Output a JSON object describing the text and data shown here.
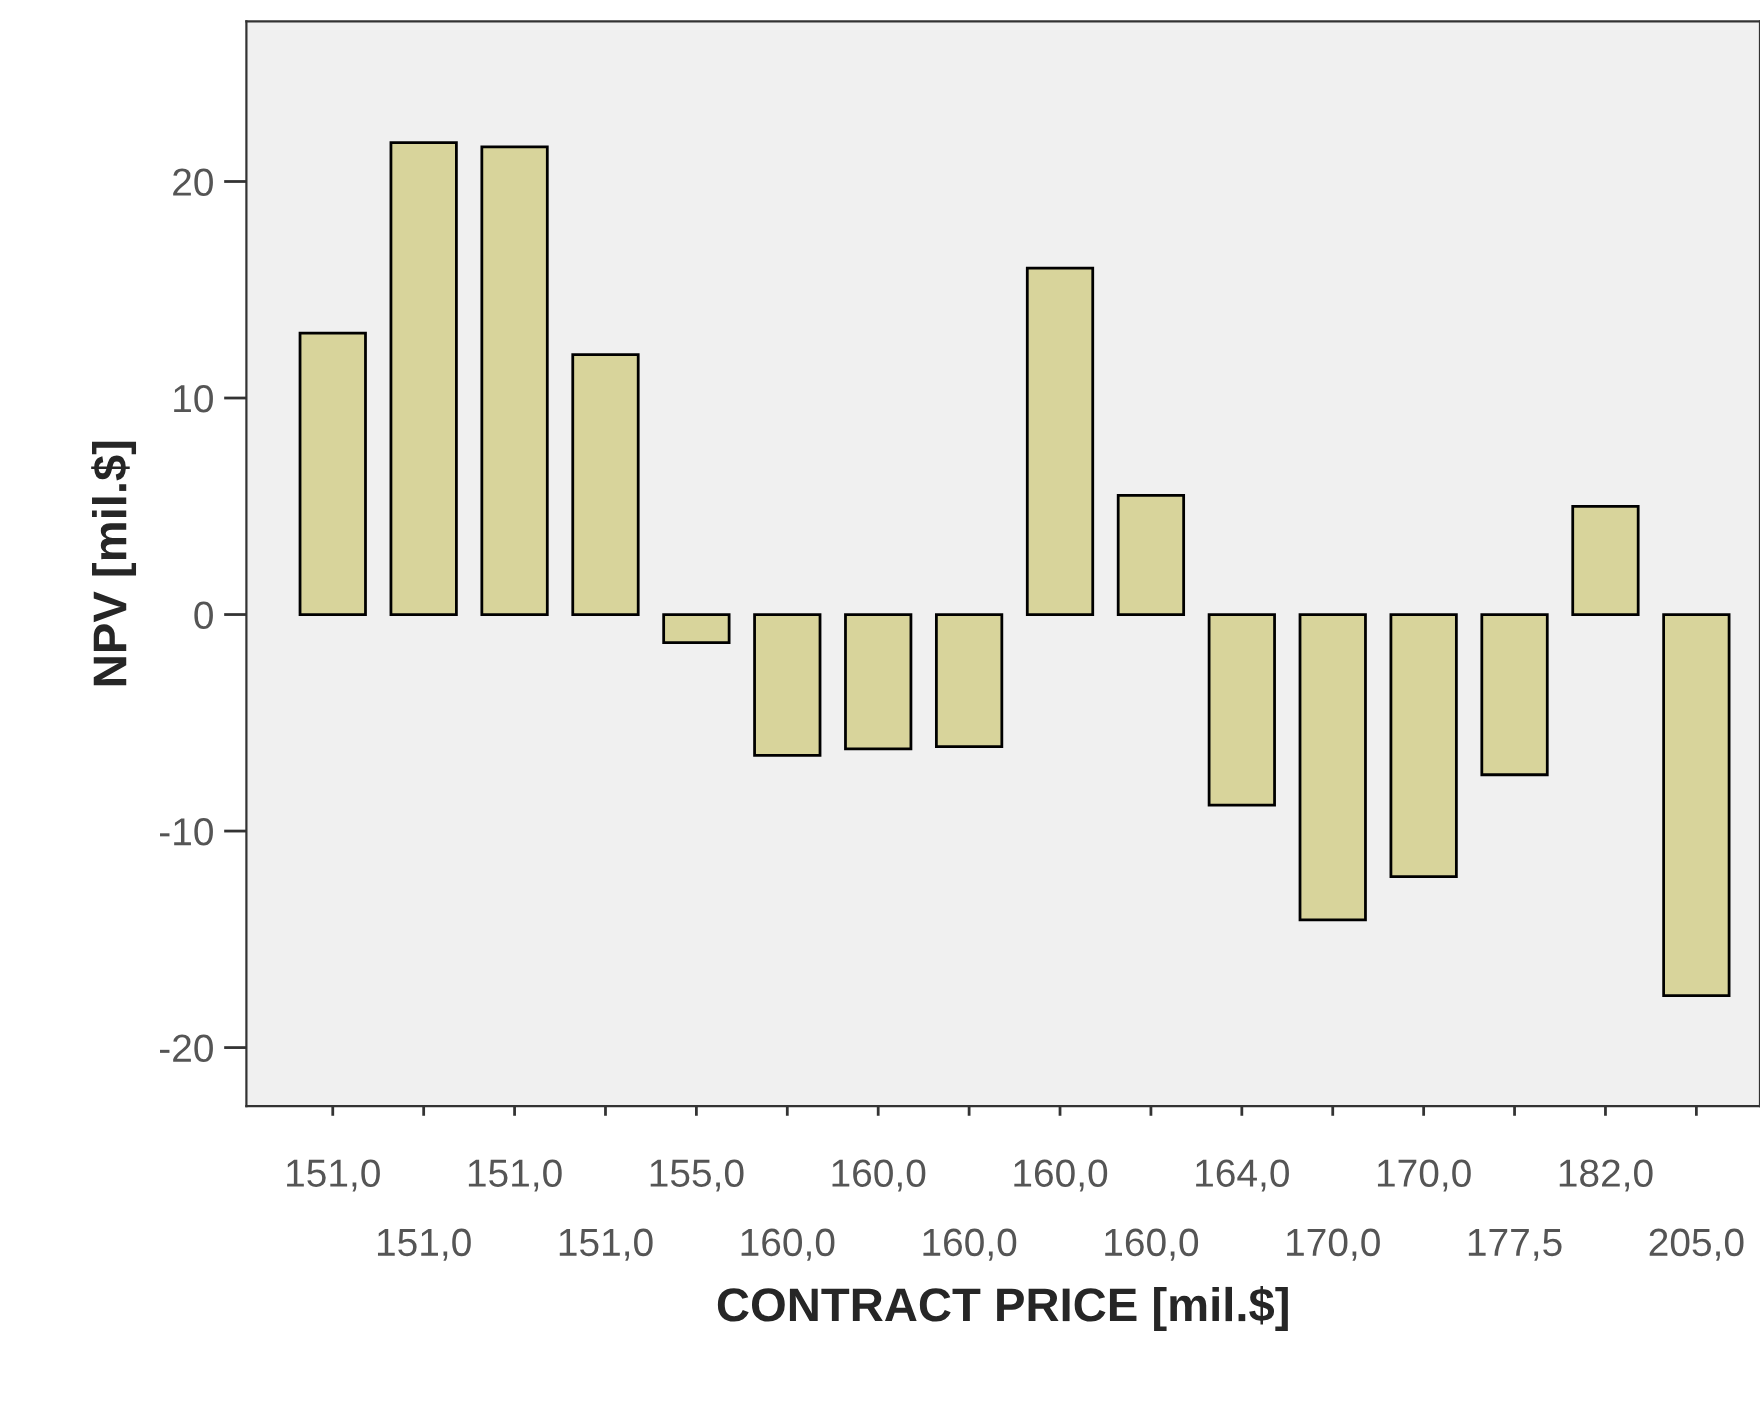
{
  "chart_data": {
    "type": "bar",
    "xlabel": "CONTRACT PRICE [mil.$]",
    "ylabel": "NPV [mil.$]",
    "categories": [
      "151,0",
      "151,0",
      "151,0",
      "151,0",
      "155,0",
      "160,0",
      "160,0",
      "160,0",
      "160,0",
      "160,0",
      "164,0",
      "170,0",
      "170,0",
      "177,5",
      "182,0",
      "205,0"
    ],
    "values": [
      13.0,
      21.8,
      21.6,
      12.0,
      -1.3,
      -6.5,
      -6.2,
      -6.1,
      16.0,
      5.5,
      -8.8,
      -14.1,
      -12.1,
      -7.4,
      5.0,
      -17.6
    ],
    "color": "#d8d49b",
    "ylim": [
      -22.7,
      27.4
    ],
    "yticks": [
      -20,
      -10,
      0,
      10,
      20
    ],
    "grid": false,
    "legend": false
  }
}
